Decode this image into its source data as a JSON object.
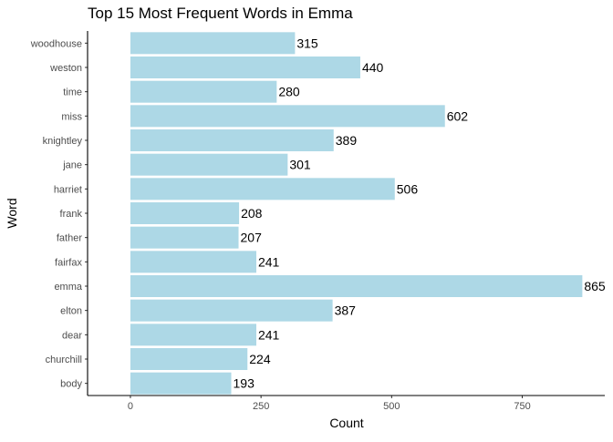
{
  "chart_data": {
    "type": "bar",
    "orientation": "horizontal",
    "title": "Top 15 Most Frequent Words in Emma",
    "xlabel": "Count",
    "ylabel": "Word",
    "categories": [
      "woodhouse",
      "weston",
      "time",
      "miss",
      "knightley",
      "jane",
      "harriet",
      "frank",
      "father",
      "fairfax",
      "emma",
      "elton",
      "dear",
      "churchill",
      "body"
    ],
    "values": [
      315,
      440,
      280,
      602,
      389,
      301,
      506,
      208,
      207,
      241,
      865,
      387,
      241,
      224,
      193
    ],
    "data_labels": [
      "315",
      "440",
      "280",
      "602",
      "389",
      "301",
      "506",
      "208",
      "207",
      "241",
      "865",
      "387",
      "241",
      "224",
      "193"
    ],
    "xlim": [
      -82,
      908
    ],
    "xticks": [
      0,
      250,
      500,
      750
    ],
    "xtick_labels": [
      "0",
      "250",
      "500",
      "750"
    ],
    "bar_color": "#add8e6",
    "grid": false,
    "legend": false
  }
}
